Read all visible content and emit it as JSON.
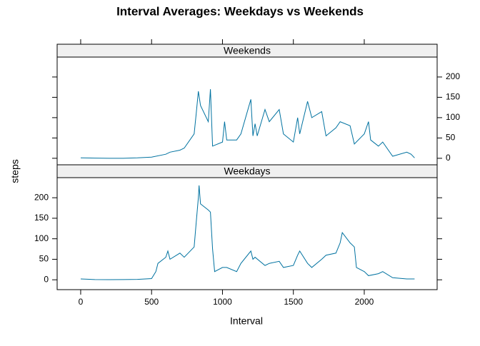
{
  "title": "Interval Averages: Weekdays vs Weekends",
  "xlabel": "Interval",
  "ylabel": "steps",
  "chart_data": [
    {
      "type": "line",
      "strip": "Weekends",
      "color": "#0072a0",
      "x": [
        0,
        100,
        200,
        300,
        400,
        500,
        600,
        630,
        700,
        730,
        800,
        815,
        830,
        845,
        900,
        915,
        930,
        1000,
        1015,
        1030,
        1100,
        1130,
        1200,
        1215,
        1230,
        1245,
        1300,
        1330,
        1400,
        1430,
        1500,
        1530,
        1545,
        1600,
        1630,
        1700,
        1730,
        1800,
        1830,
        1900,
        1930,
        2000,
        2030,
        2045,
        2100,
        2130,
        2200,
        2300,
        2330,
        2355
      ],
      "values": [
        1,
        0.5,
        0,
        0,
        1,
        3,
        10,
        15,
        20,
        25,
        60,
        110,
        165,
        130,
        90,
        170,
        30,
        40,
        90,
        45,
        45,
        60,
        145,
        55,
        85,
        55,
        120,
        90,
        120,
        60,
        40,
        100,
        60,
        140,
        100,
        115,
        55,
        75,
        90,
        80,
        35,
        60,
        90,
        45,
        30,
        40,
        5,
        15,
        10,
        1
      ],
      "xlim": [
        -166,
        2514
      ],
      "xticks": [
        0,
        500,
        1000,
        1500,
        2000
      ],
      "ylim": [
        -16,
        249
      ],
      "yticks": [
        0,
        50,
        100,
        150,
        200
      ]
    },
    {
      "type": "line",
      "strip": "Weekdays",
      "color": "#0072a0",
      "x": [
        0,
        100,
        200,
        300,
        400,
        500,
        530,
        545,
        600,
        615,
        630,
        700,
        730,
        800,
        815,
        830,
        835,
        845,
        900,
        915,
        930,
        945,
        1000,
        1030,
        1100,
        1130,
        1200,
        1215,
        1230,
        1300,
        1330,
        1400,
        1430,
        1500,
        1530,
        1545,
        1600,
        1630,
        1700,
        1730,
        1800,
        1830,
        1845,
        1900,
        1930,
        1945,
        2000,
        2030,
        2100,
        2130,
        2200,
        2300,
        2355
      ],
      "values": [
        2,
        0.5,
        0.3,
        0.5,
        1,
        3,
        20,
        40,
        55,
        70,
        50,
        65,
        55,
        80,
        140,
        200,
        230,
        185,
        170,
        165,
        75,
        20,
        30,
        30,
        20,
        40,
        70,
        50,
        55,
        35,
        40,
        45,
        30,
        35,
        60,
        70,
        40,
        30,
        50,
        60,
        65,
        90,
        115,
        90,
        80,
        30,
        20,
        10,
        15,
        20,
        5,
        2,
        2
      ],
      "xlim": [
        -166,
        2514
      ],
      "xticks": [
        0,
        500,
        1000,
        1500,
        2000
      ],
      "ylim": [
        -24,
        249
      ],
      "yticks": [
        0,
        50,
        100,
        150,
        200
      ]
    }
  ]
}
